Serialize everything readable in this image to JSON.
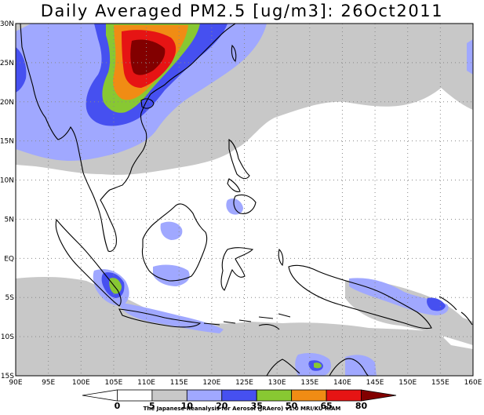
{
  "title": "Daily Averaged PM2.5 [ug/m3]: 26Oct2011",
  "credit": "The Japanese Reanalysis for Aerosol (JRAero) v1.0 MRI/KU RIAM",
  "map": {
    "lon_range": [
      90,
      160
    ],
    "lat_range": [
      -15,
      30
    ],
    "lon_ticks": [
      "90E",
      "95E",
      "100E",
      "105E",
      "110E",
      "115E",
      "120E",
      "125E",
      "130E",
      "135E",
      "140E",
      "145E",
      "150E",
      "155E",
      "160E"
    ],
    "lat_ticks": [
      "30N",
      "25N",
      "20N",
      "15N",
      "10N",
      "5N",
      "EQ",
      "5S",
      "10S",
      "15S"
    ]
  },
  "colorbar": {
    "labels": [
      "0",
      "5",
      "10",
      "20",
      "35",
      "50",
      "65",
      "80"
    ],
    "colors": [
      "#ffffff",
      "#ffffff",
      "#c8c8c8",
      "#a0a8ff",
      "#4650f0",
      "#88c832",
      "#f08c14",
      "#e61414",
      "#820000"
    ]
  },
  "colors": {
    "grey": "#c8c8c8",
    "lightblue": "#a0a8ff",
    "blue": "#4650f0",
    "green": "#88c832",
    "orange": "#f08c14",
    "red": "#e61414",
    "darkred": "#820000"
  }
}
